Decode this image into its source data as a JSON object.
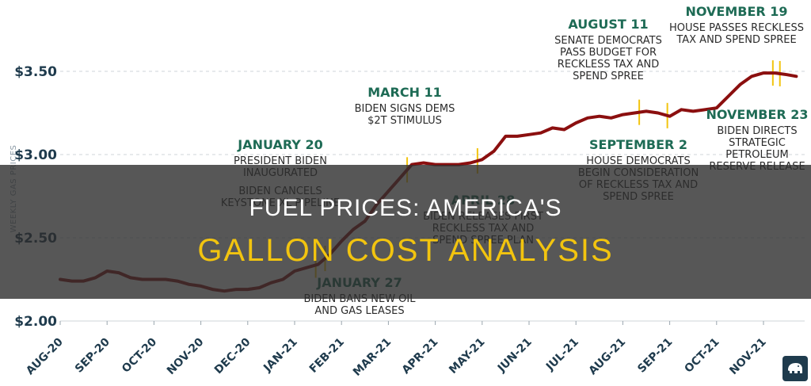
{
  "overlay": {
    "line1": "FUEL PRICES: AMERICA'S",
    "line2": "GALLON COST ANALYSIS"
  },
  "colors": {
    "line": "#8b0f0f",
    "marker": "#f2c40f",
    "annotation_date": "#1e6b55",
    "axis_text": "#1f3b4d"
  },
  "chart_data": {
    "type": "line",
    "ylabel": "WEEKLY GAS PRICES",
    "xlabel": "",
    "ylim": [
      2.0,
      3.6
    ],
    "y_ticks": [
      {
        "value": 2.0,
        "label": "$2.00"
      },
      {
        "value": 2.5,
        "label": "$2.50"
      },
      {
        "value": 3.0,
        "label": "$3.00"
      },
      {
        "value": 3.5,
        "label": "$3.50"
      }
    ],
    "x_ticks": [
      {
        "x": 0,
        "label": "AUG-20"
      },
      {
        "x": 1,
        "label": "SEP-20"
      },
      {
        "x": 2,
        "label": "OCT-20"
      },
      {
        "x": 3,
        "label": "NOV-20"
      },
      {
        "x": 4,
        "label": "DEC-20"
      },
      {
        "x": 5,
        "label": "JAN-21"
      },
      {
        "x": 6,
        "label": "FEB-21"
      },
      {
        "x": 7,
        "label": "MAR-21"
      },
      {
        "x": 8,
        "label": "APR-21"
      },
      {
        "x": 9,
        "label": "MAY-21"
      },
      {
        "x": 10,
        "label": "JUN-21"
      },
      {
        "x": 11,
        "label": "JUL-21"
      },
      {
        "x": 12,
        "label": "AUG-21"
      },
      {
        "x": 13,
        "label": "SEP-21"
      },
      {
        "x": 14,
        "label": "OCT-21"
      },
      {
        "x": 15,
        "label": "NOV-21"
      }
    ],
    "x": [
      0,
      0.25,
      0.5,
      0.75,
      1,
      1.25,
      1.5,
      1.75,
      2,
      2.25,
      2.5,
      2.75,
      3,
      3.25,
      3.5,
      3.75,
      4,
      4.25,
      4.5,
      4.75,
      5,
      5.25,
      5.5,
      5.75,
      6,
      6.25,
      6.5,
      6.75,
      7,
      7.25,
      7.5,
      7.75,
      8,
      8.25,
      8.5,
      8.75,
      9,
      9.25,
      9.5,
      9.75,
      10,
      10.25,
      10.5,
      10.75,
      11,
      11.25,
      11.5,
      11.75,
      12,
      12.25,
      12.5,
      12.75,
      13,
      13.25,
      13.5,
      13.75,
      14,
      14.25,
      14.5,
      14.75,
      15,
      15.25,
      15.5,
      15.7
    ],
    "series": [
      {
        "values": [
          2.25,
          2.24,
          2.24,
          2.26,
          2.3,
          2.29,
          2.26,
          2.25,
          2.25,
          2.25,
          2.24,
          2.22,
          2.21,
          2.19,
          2.18,
          2.19,
          2.19,
          2.2,
          2.23,
          2.25,
          2.3,
          2.32,
          2.34,
          2.4,
          2.48,
          2.55,
          2.6,
          2.7,
          2.78,
          2.86,
          2.94,
          2.95,
          2.94,
          2.94,
          2.94,
          2.95,
          2.97,
          3.02,
          3.11,
          3.11,
          3.12,
          3.13,
          3.16,
          3.15,
          3.19,
          3.22,
          3.23,
          3.22,
          3.24,
          3.25,
          3.26,
          3.25,
          3.23,
          3.27,
          3.26,
          3.27,
          3.28,
          3.35,
          3.42,
          3.47,
          3.49,
          3.49,
          3.48,
          3.47
        ]
      }
    ],
    "events": [
      {
        "x": 5.45,
        "date": "JANUARY 20",
        "lines": [
          "PRESIDENT BIDEN",
          "INAUGURATED",
          "",
          "BIDEN CANCELS",
          "KEYSTONE XL PIPELINE"
        ]
      },
      {
        "x": 5.65,
        "date": "JANUARY 27",
        "lines": [
          "BIDEN BANS NEW OIL",
          "AND GAS LEASES"
        ]
      },
      {
        "x": 7.4,
        "date": "MARCH 11",
        "lines": [
          "BIDEN SIGNS DEMS",
          "$2T STIMULUS"
        ]
      },
      {
        "x": 8.9,
        "date": "APRIL 28",
        "lines": [
          "BIDEN RELEASES FIRST",
          "RECKLESS TAX AND",
          "SPEND SPREE PLAN"
        ]
      },
      {
        "x": 12.35,
        "date": "AUGUST 11",
        "lines": [
          "SENATE DEMOCRATS",
          "PASS BUDGET FOR",
          "RECKLESS TAX AND",
          "SPEND SPREE"
        ]
      },
      {
        "x": 12.95,
        "date": "SEPTEMBER 2",
        "lines": [
          "HOUSE DEMOCRATS",
          "BEGIN CONSIDERATION",
          "OF RECKLESS TAX AND",
          "SPEND SPREE"
        ]
      },
      {
        "x": 15.2,
        "date": "NOVEMBER 19",
        "lines": [
          "HOUSE PASSES RECKLESS",
          "TAX AND SPEND SPREE"
        ]
      },
      {
        "x": 15.35,
        "date": "NOVEMBER 23",
        "lines": [
          "BIDEN DIRECTS",
          "STRATEGIC",
          "PETROLEUM",
          "RESERVE RELEASE"
        ]
      }
    ]
  }
}
